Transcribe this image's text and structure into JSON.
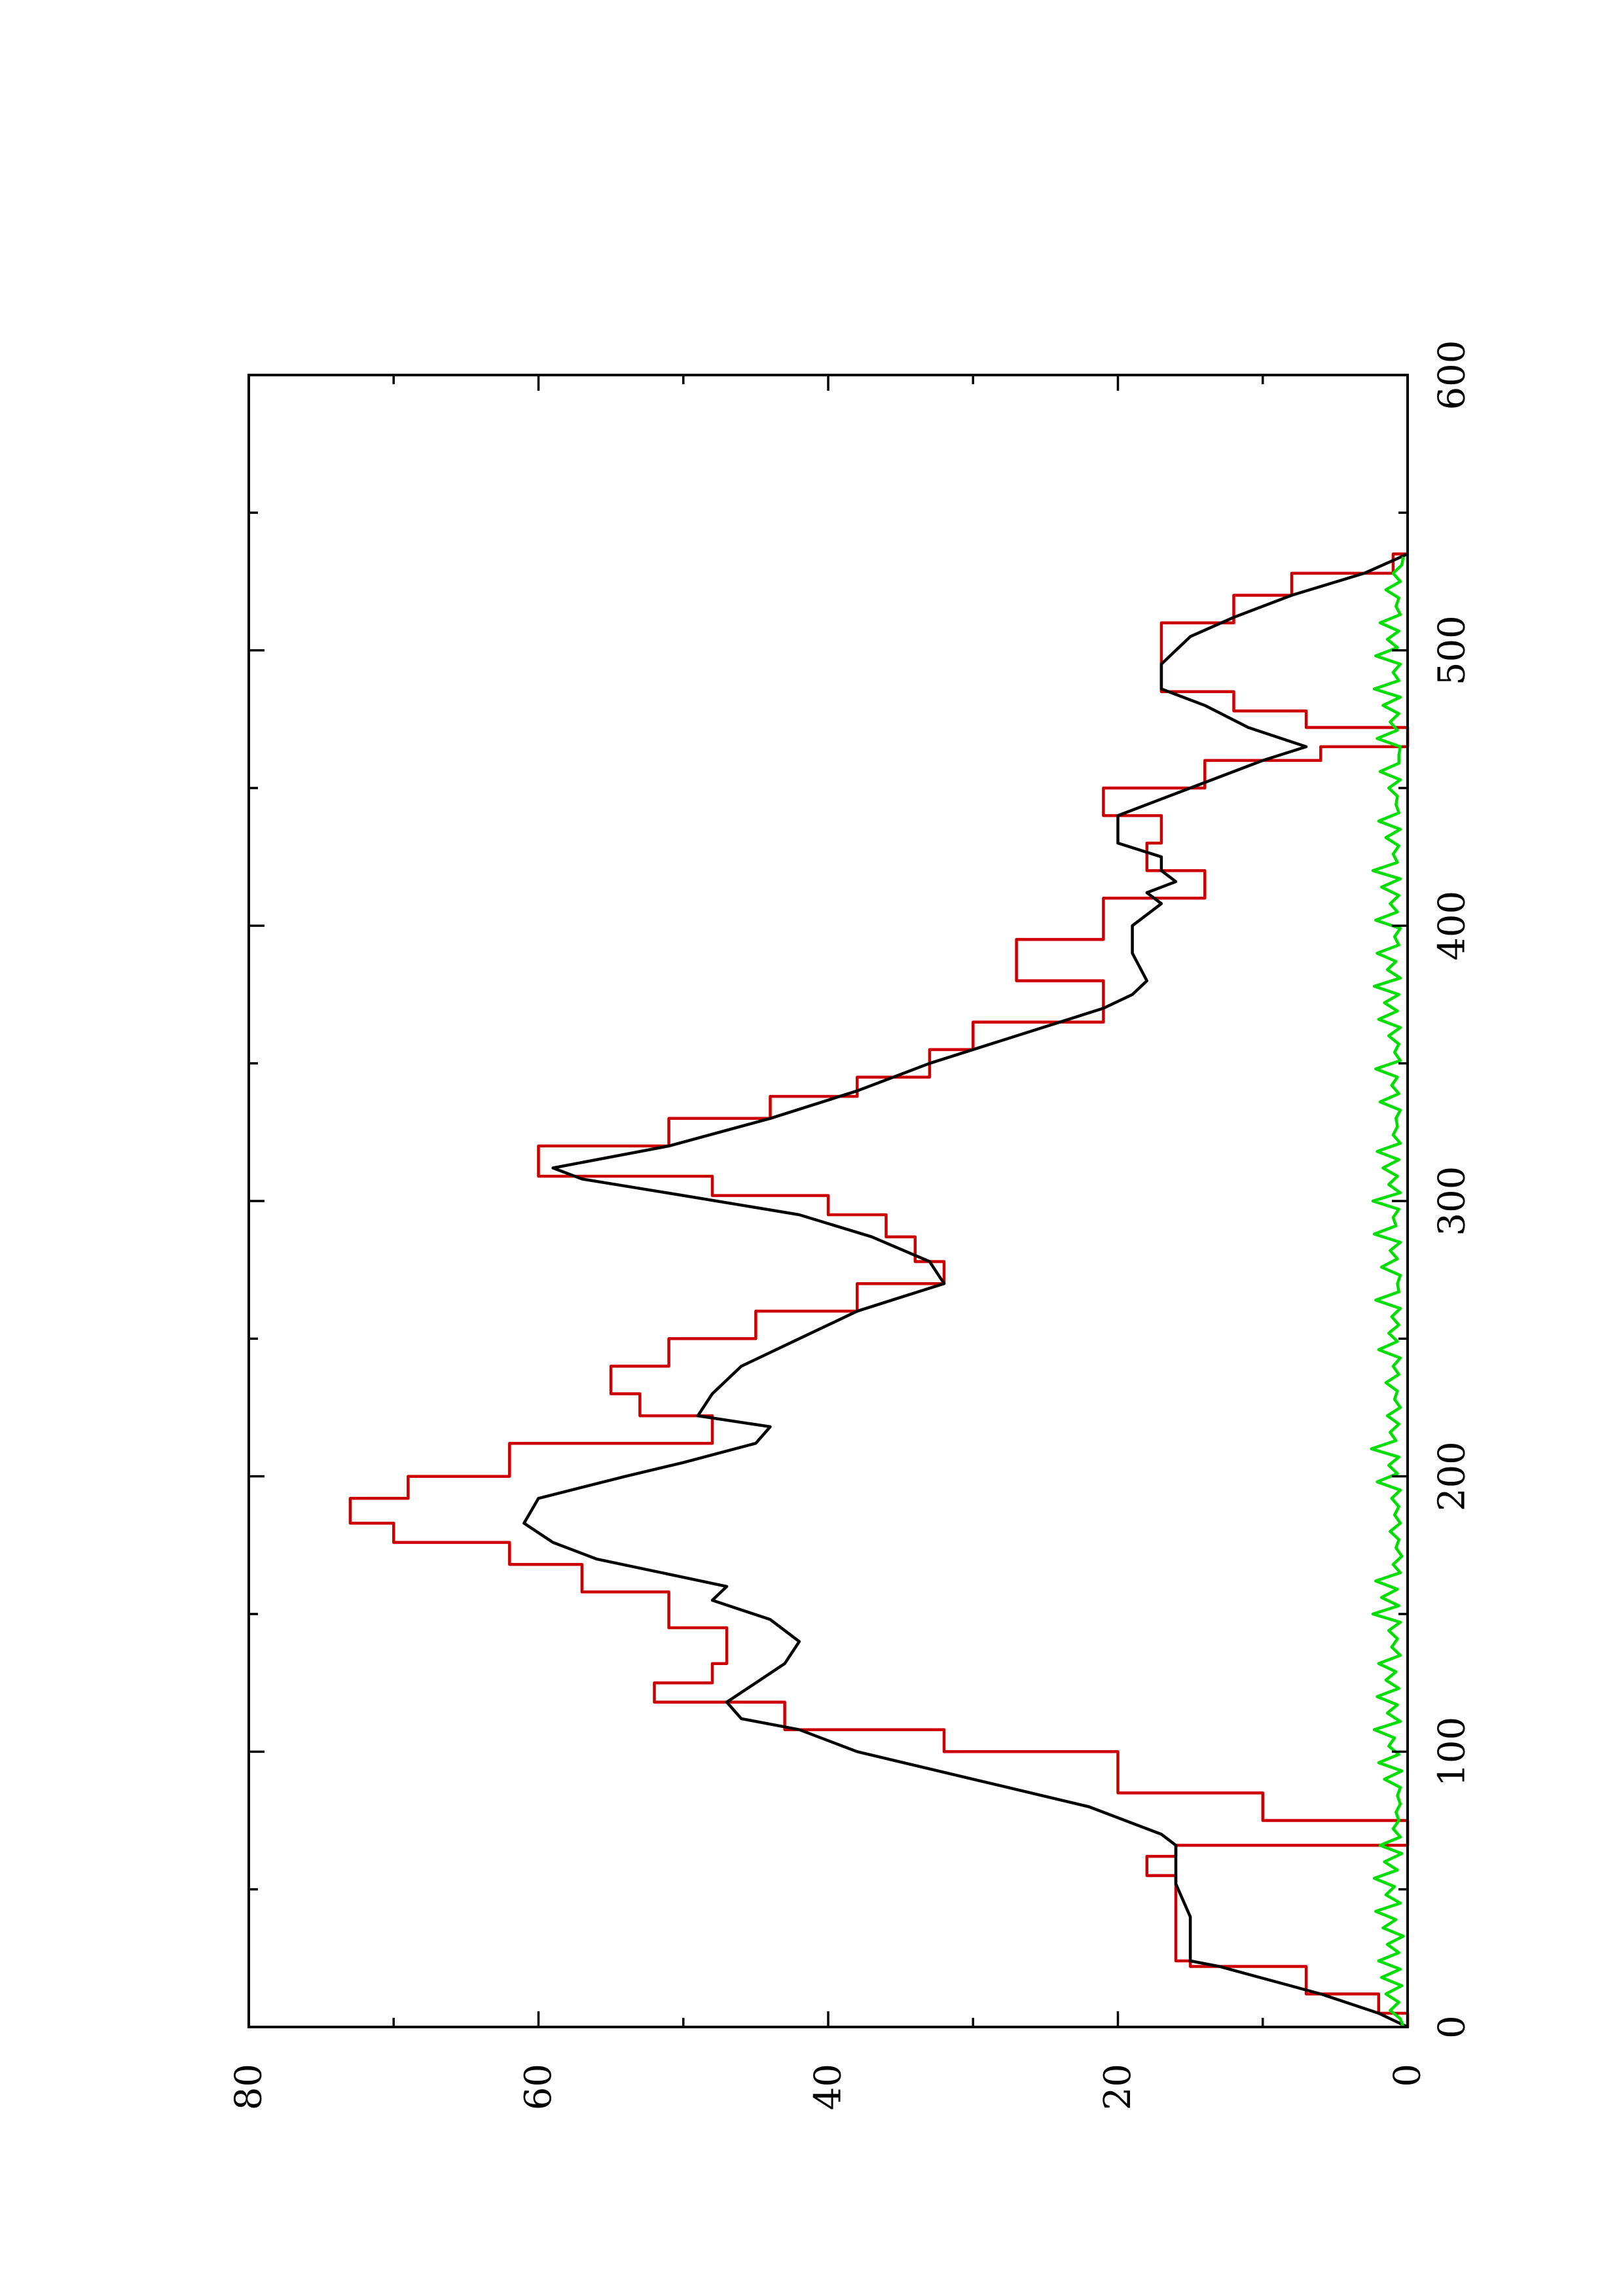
{
  "chart_data": {
    "type": "line",
    "orientation": "rotated-90-ccw",
    "title": "",
    "xlabel": "",
    "ylabel": "",
    "xlim": [
      0,
      600
    ],
    "ylim": [
      0,
      80
    ],
    "x_ticks": [
      0,
      100,
      200,
      300,
      400,
      500,
      600
    ],
    "x_tick_labels": [
      "0",
      "100",
      "200",
      "300",
      "400",
      "500",
      "600"
    ],
    "x_minor_ticks": [
      50,
      150,
      250,
      350,
      450,
      550
    ],
    "y_ticks": [
      0,
      20,
      40,
      60,
      80
    ],
    "y_tick_labels": [
      "0",
      "20",
      "40",
      "60",
      "80"
    ],
    "y_minor_ticks": [
      10,
      30,
      50,
      70
    ],
    "grid": false,
    "legend": "none",
    "series": [
      {
        "color": "#cc0000",
        "step": true,
        "x": [
          0,
          5,
          12,
          22,
          24,
          52,
          55,
          62,
          66,
          75,
          85,
          100,
          108,
          118,
          125,
          132,
          145,
          158,
          168,
          176,
          183,
          192,
          200,
          212,
          222,
          230,
          240,
          250,
          260,
          270,
          278,
          287,
          295,
          302,
          309,
          320,
          330,
          338,
          345,
          355,
          365,
          380,
          395,
          410,
          420,
          430,
          440,
          450,
          460,
          465,
          472,
          478,
          485,
          500,
          510,
          520,
          528,
          535
        ],
        "y": [
          0,
          2,
          7,
          15,
          16,
          16,
          18,
          16,
          0,
          10,
          20,
          32,
          43,
          52,
          48,
          47,
          51,
          57,
          62,
          70,
          73,
          69,
          62,
          48,
          53,
          55,
          51,
          45,
          38,
          32,
          34,
          36,
          40,
          48,
          60,
          51,
          44,
          38,
          33,
          30,
          21,
          27,
          21,
          14,
          18,
          17,
          21,
          14,
          6,
          0,
          7,
          12,
          17,
          17,
          12,
          8,
          1,
          0
        ]
      },
      {
        "color": "#000000",
        "step": false,
        "x": [
          0,
          5,
          12,
          22,
          24,
          30,
          40,
          52,
          60,
          66,
          70,
          80,
          90,
          100,
          108,
          112,
          118,
          125,
          132,
          140,
          148,
          155,
          160,
          170,
          176,
          183,
          192,
          200,
          205,
          212,
          218,
          222,
          230,
          240,
          250,
          260,
          265,
          270,
          278,
          287,
          295,
          302,
          308,
          312,
          320,
          330,
          340,
          350,
          360,
          370,
          375,
          380,
          390,
          400,
          408,
          412,
          416,
          420,
          425,
          430,
          440,
          450,
          460,
          465,
          472,
          480,
          486,
          495,
          505,
          512,
          520,
          528,
          535
        ],
        "y": [
          0,
          2,
          6,
          13,
          15,
          15,
          15,
          16,
          16,
          16,
          17,
          22,
          30,
          38,
          42,
          46,
          47,
          45,
          43,
          42,
          44,
          48,
          47,
          56,
          59,
          61,
          60,
          54,
          50,
          45,
          44,
          49,
          48,
          46,
          42,
          38,
          35,
          32,
          33,
          37,
          42,
          50,
          57,
          59,
          51,
          44,
          38,
          33,
          27,
          21,
          19,
          18,
          19,
          19,
          17,
          18,
          16,
          17,
          17,
          20,
          20,
          15,
          10,
          7,
          11,
          14,
          17,
          17,
          15,
          12,
          8,
          3,
          0
        ]
      },
      {
        "color": "#00dd00",
        "step": false,
        "x": [
          0,
          3,
          6,
          9,
          12,
          15,
          18,
          21,
          24,
          27,
          30,
          33,
          36,
          39,
          42,
          45,
          48,
          51,
          54,
          57,
          60,
          63,
          66,
          69,
          72,
          75,
          78,
          81,
          84,
          87,
          90,
          93,
          96,
          99,
          102,
          105,
          108,
          111,
          114,
          117,
          120,
          123,
          126,
          129,
          132,
          135,
          138,
          141,
          144,
          147,
          150,
          153,
          156,
          159,
          162,
          165,
          168,
          171,
          174,
          177,
          180,
          183,
          186,
          189,
          192,
          195,
          198,
          201,
          204,
          207,
          210,
          213,
          216,
          219,
          222,
          225,
          228,
          231,
          234,
          237,
          240,
          243,
          246,
          249,
          252,
          255,
          258,
          261,
          264,
          267,
          270,
          273,
          276,
          279,
          282,
          285,
          288,
          291,
          294,
          297,
          300,
          303,
          306,
          309,
          312,
          315,
          318,
          321,
          324,
          327,
          330,
          333,
          336,
          339,
          342,
          345,
          348,
          351,
          354,
          357,
          360,
          363,
          366,
          369,
          372,
          375,
          378,
          381,
          384,
          387,
          390,
          393,
          396,
          399,
          402,
          405,
          408,
          411,
          414,
          417,
          420,
          423,
          426,
          429,
          432,
          435,
          438,
          441,
          444,
          447,
          450,
          453,
          456,
          459,
          462,
          465,
          468,
          471,
          474,
          477,
          480,
          483,
          486,
          489,
          492,
          495,
          498,
          501,
          504,
          507,
          510,
          513,
          516,
          519,
          522,
          525,
          528,
          531,
          534
        ],
        "y": [
          0.3,
          0.5,
          1.2,
          0.6,
          1.5,
          0.4,
          1.8,
          0.5,
          2.0,
          0.6,
          1.4,
          0.3,
          1.7,
          0.8,
          2.2,
          0.5,
          1.5,
          0.9,
          2.3,
          0.7,
          1.6,
          0.4,
          1.9,
          0.5,
          1.0,
          0.6,
          0.8,
          0.5,
          0.7,
          0.5,
          1.6,
          0.4,
          2.0,
          0.6,
          1.3,
          0.9,
          2.3,
          0.5,
          1.4,
          0.7,
          2.1,
          0.6,
          1.5,
          0.8,
          2.0,
          0.5,
          1.1,
          0.7,
          1.3,
          0.5,
          2.4,
          0.6,
          1.8,
          0.7,
          2.2,
          0.5,
          1.0,
          0.4,
          0.8,
          0.6,
          1.2,
          0.5,
          0.9,
          0.6,
          1.1,
          0.5,
          2.1,
          0.7,
          1.3,
          0.6,
          2.5,
          0.8,
          1.2,
          0.6,
          1.4,
          0.5,
          0.9,
          0.7,
          1.5,
          0.6,
          1.0,
          0.5,
          2.0,
          0.7,
          1.3,
          0.6,
          1.1,
          0.5,
          2.2,
          0.6,
          0.7,
          0.5,
          1.8,
          0.7,
          1.2,
          0.5,
          2.3,
          0.8,
          1.0,
          0.6,
          2.4,
          0.5,
          1.3,
          0.7,
          1.7,
          0.6,
          2.1,
          0.5,
          1.0,
          0.7,
          0.8,
          0.5,
          1.9,
          0.6,
          1.1,
          0.7,
          2.2,
          0.5,
          0.9,
          0.6,
          1.3,
          0.5,
          2.0,
          0.7,
          1.6,
          0.6,
          2.3,
          0.5,
          1.4,
          0.8,
          2.1,
          0.6,
          0.9,
          0.5,
          2.2,
          0.7,
          1.2,
          0.6,
          1.8,
          0.5,
          2.4,
          0.7,
          1.0,
          0.6,
          1.5,
          0.5,
          2.0,
          0.6,
          0.8,
          0.7,
          1.3,
          0.5,
          1.9,
          0.6,
          0.6,
          0.5,
          2.1,
          0.7,
          1.2,
          0.6,
          1.7,
          0.5,
          2.3,
          0.6,
          1.0,
          0.5,
          2.2,
          0.7,
          1.4,
          0.6,
          1.9,
          0.5,
          0.8,
          0.6,
          1.5,
          0.5,
          1.0,
          0.4,
          0.3
        ]
      }
    ]
  }
}
